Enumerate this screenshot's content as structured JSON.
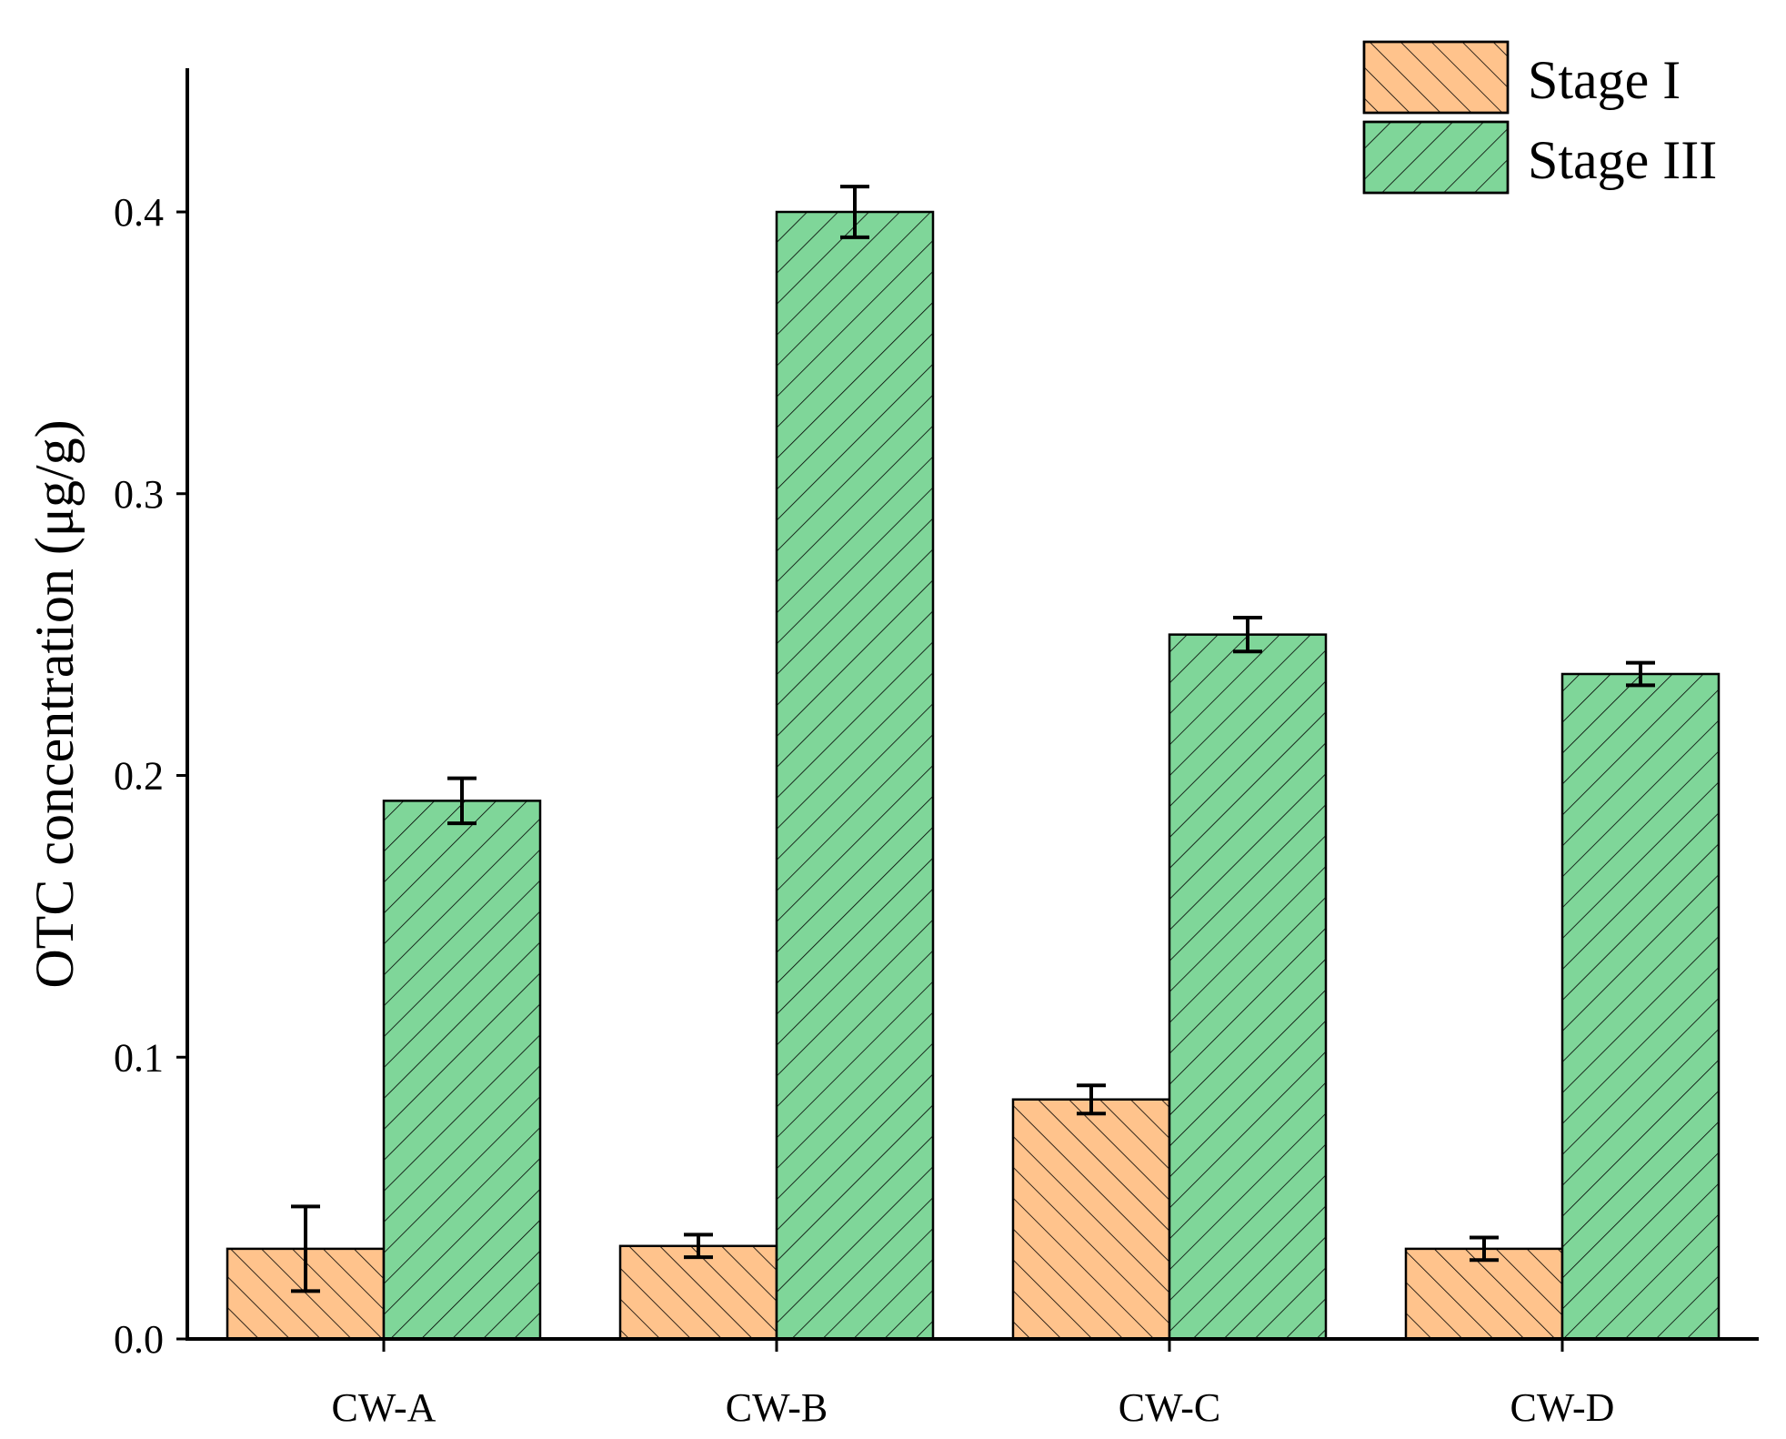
{
  "chart_data": {
    "type": "bar",
    "title": "",
    "xlabel": "",
    "ylabel": "OTC concentration (μg/g)",
    "ylim": [
      0,
      0.45
    ],
    "yticks": [
      "0.0",
      "0.1",
      "0.2",
      "0.3",
      "0.4"
    ],
    "ytick_values": [
      0,
      0.1,
      0.2,
      0.3,
      0.4
    ],
    "categories": [
      "CW-A",
      "CW-B",
      "CW-C",
      "CW-D"
    ],
    "legend_position": "top-right",
    "series": [
      {
        "name": "Stage I",
        "color": "#ffc38c",
        "hatch": "backslash",
        "values": [
          0.032,
          0.033,
          0.085,
          0.032
        ],
        "errors": [
          0.015,
          0.004,
          0.005,
          0.004
        ]
      },
      {
        "name": "Stage III",
        "color": "#7fd699",
        "hatch": "slash",
        "values": [
          0.191,
          0.4,
          0.25,
          0.236
        ],
        "errors": [
          0.008,
          0.009,
          0.006,
          0.004
        ]
      }
    ]
  }
}
